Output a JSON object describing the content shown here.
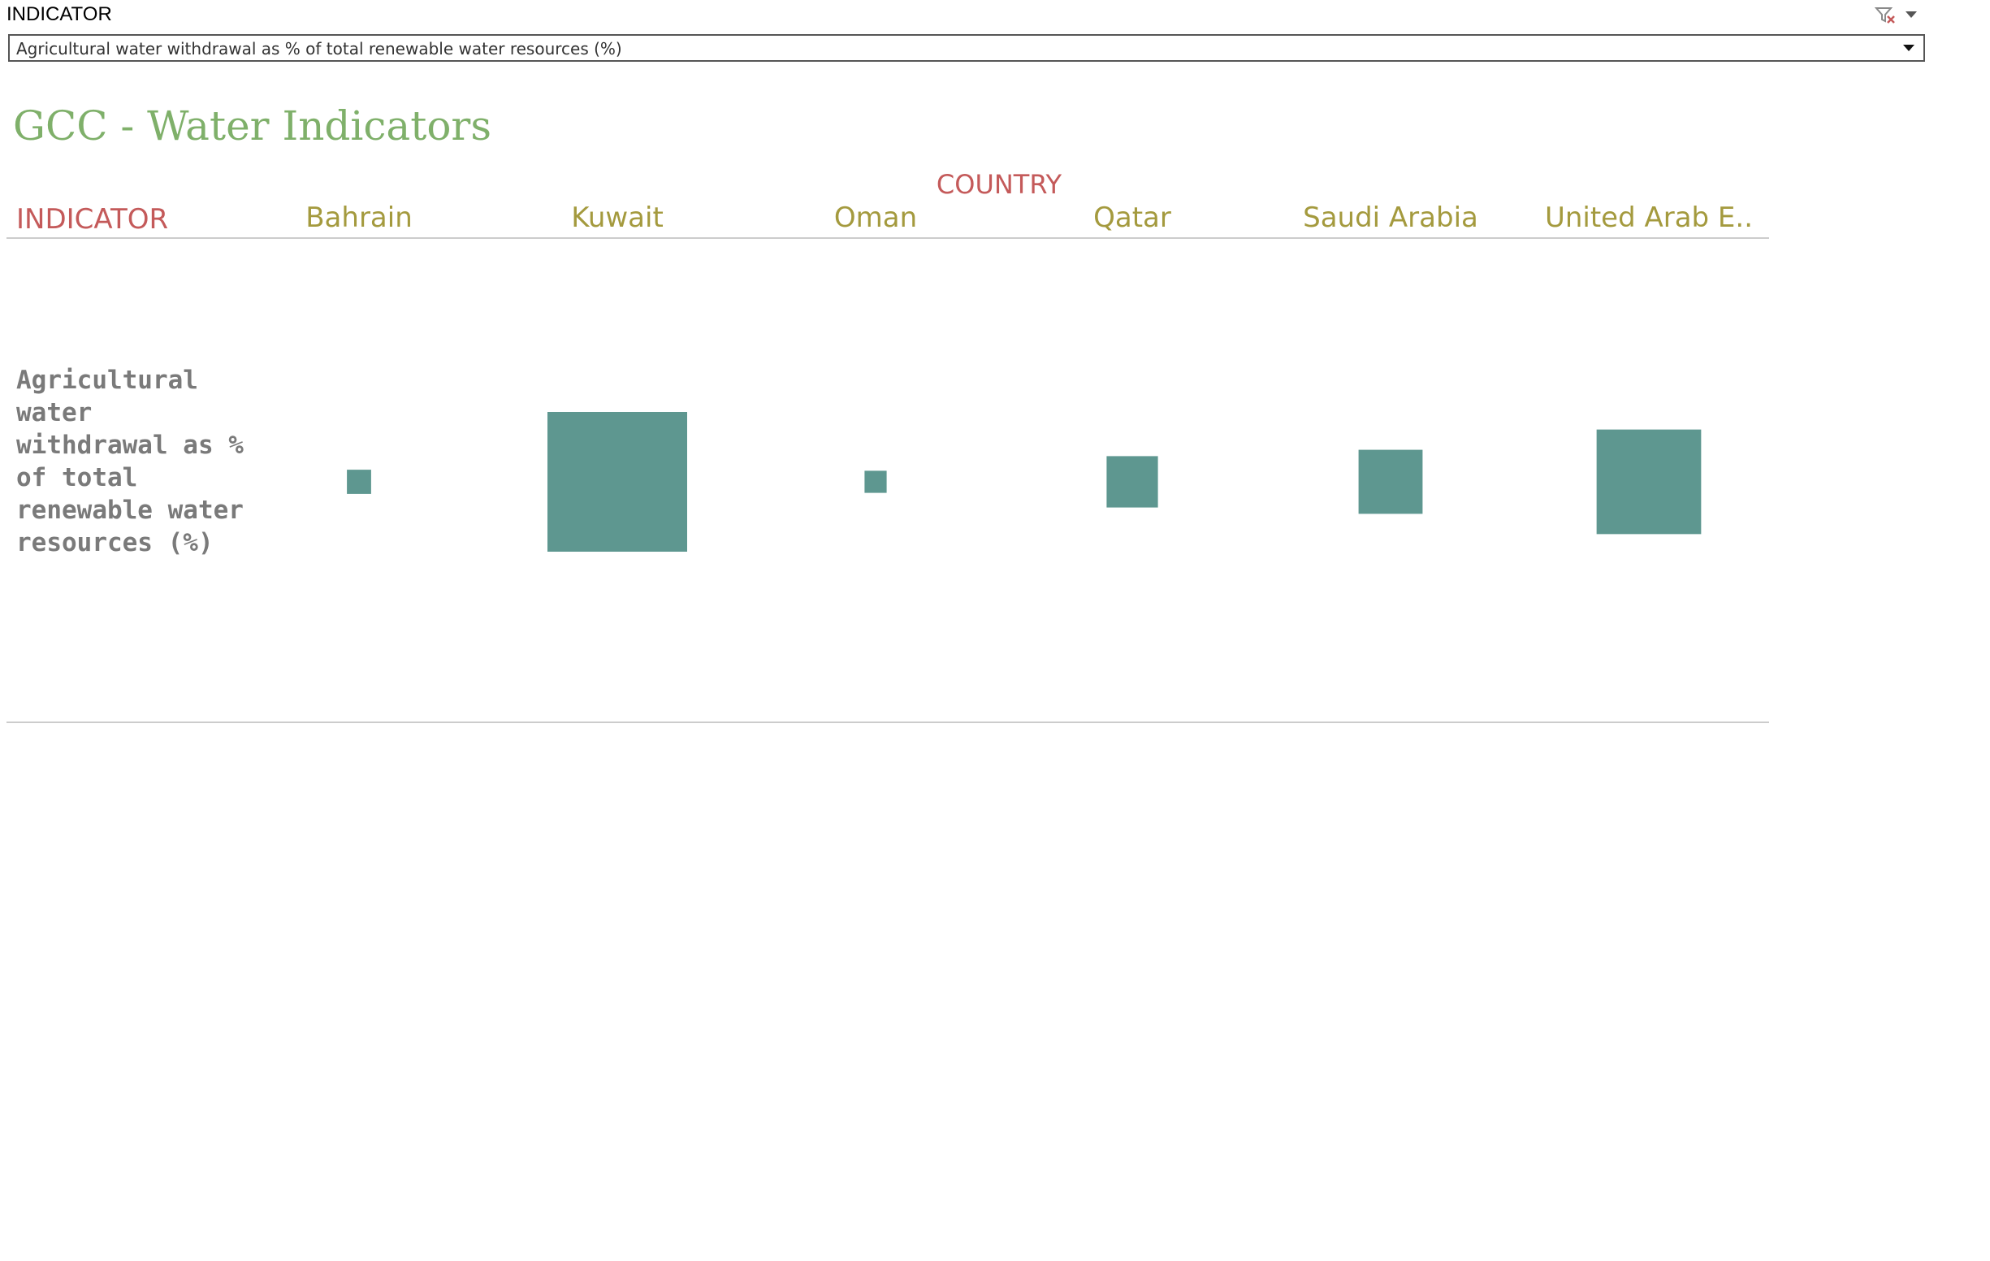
{
  "filter": {
    "title": "INDICATOR",
    "selected": "Agricultural water withdrawal as % of total renewable water resources (%)",
    "clear_filter_icon": "clear-filter-icon",
    "menu_icon": "caret-down-icon",
    "dropdown_icon": "caret-down-icon"
  },
  "dashboard": {
    "title": "GCC - Water Indicators"
  },
  "table": {
    "column_group_header": "COUNTRY",
    "row_header": "INDICATOR",
    "countries": [
      "Bahrain",
      "Kuwait",
      "Oman",
      "Qatar",
      "Saudi Arabia",
      "United Arab E.."
    ],
    "row_label": "Agricultural water withdrawal as % of total renewable water resources (%)"
  },
  "chart_data": {
    "type": "heatmap",
    "mark": "square",
    "categories": [
      "Bahrain",
      "Kuwait",
      "Oman",
      "Qatar",
      "Saudi Arabia",
      "United Arab E.."
    ],
    "series": [
      {
        "values": [
          0.03,
          1.0,
          0.025,
          0.135,
          0.21,
          0.56
        ]
      }
    ],
    "color": "#5e9790"
  }
}
